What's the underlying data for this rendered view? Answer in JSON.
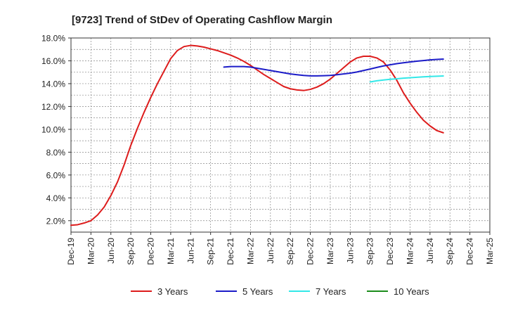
{
  "chart_data": {
    "type": "line",
    "title": "[9723]  Trend of StDev of Operating Cashflow Margin",
    "xlabel": "",
    "ylabel": "",
    "x_ticks": [
      "Dec-19",
      "Mar-20",
      "Jun-20",
      "Sep-20",
      "Dec-20",
      "Mar-21",
      "Jun-21",
      "Sep-21",
      "Dec-21",
      "Mar-22",
      "Jun-22",
      "Sep-22",
      "Dec-22",
      "Mar-23",
      "Jun-23",
      "Sep-23",
      "Dec-23",
      "Mar-24",
      "Jun-24",
      "Sep-24",
      "Dec-24",
      "Mar-25"
    ],
    "y_ticks": [
      "2.0%",
      "4.0%",
      "6.0%",
      "8.0%",
      "10.0%",
      "12.0%",
      "14.0%",
      "16.0%",
      "18.0%"
    ],
    "ylim": [
      1.0,
      18.0
    ],
    "y_unit": "%",
    "grid": true,
    "legend_position": "bottom",
    "series": [
      {
        "name": "3 Years",
        "color": "#dd1c1c",
        "points": [
          [
            "Dec-19",
            1.6
          ],
          [
            "Jan-20",
            1.65
          ],
          [
            "Feb-20",
            1.8
          ],
          [
            "Mar-20",
            2.0
          ],
          [
            "Apr-20",
            2.5
          ],
          [
            "May-20",
            3.2
          ],
          [
            "Jun-20",
            4.2
          ],
          [
            "Jul-20",
            5.4
          ],
          [
            "Aug-20",
            6.9
          ],
          [
            "Sep-20",
            8.6
          ],
          [
            "Oct-20",
            10.1
          ],
          [
            "Nov-20",
            11.5
          ],
          [
            "Dec-20",
            12.8
          ],
          [
            "Jan-21",
            14.0
          ],
          [
            "Feb-21",
            15.1
          ],
          [
            "Mar-21",
            16.2
          ],
          [
            "Apr-21",
            16.9
          ],
          [
            "May-21",
            17.25
          ],
          [
            "Jun-21",
            17.35
          ],
          [
            "Jul-21",
            17.3
          ],
          [
            "Aug-21",
            17.2
          ],
          [
            "Sep-21",
            17.05
          ],
          [
            "Oct-21",
            16.9
          ],
          [
            "Nov-21",
            16.7
          ],
          [
            "Dec-21",
            16.5
          ],
          [
            "Jan-22",
            16.25
          ],
          [
            "Feb-22",
            15.95
          ],
          [
            "Mar-22",
            15.6
          ],
          [
            "Apr-22",
            15.2
          ],
          [
            "May-22",
            14.8
          ],
          [
            "Jun-22",
            14.45
          ],
          [
            "Jul-22",
            14.1
          ],
          [
            "Aug-22",
            13.75
          ],
          [
            "Sep-22",
            13.55
          ],
          [
            "Oct-22",
            13.45
          ],
          [
            "Nov-22",
            13.4
          ],
          [
            "Dec-22",
            13.5
          ],
          [
            "Jan-23",
            13.7
          ],
          [
            "Feb-23",
            14.0
          ],
          [
            "Mar-23",
            14.4
          ],
          [
            "Apr-23",
            14.9
          ],
          [
            "May-23",
            15.4
          ],
          [
            "Jun-23",
            15.9
          ],
          [
            "Jul-23",
            16.25
          ],
          [
            "Aug-23",
            16.4
          ],
          [
            "Sep-23",
            16.4
          ],
          [
            "Oct-23",
            16.25
          ],
          [
            "Nov-23",
            15.9
          ],
          [
            "Dec-23",
            15.2
          ],
          [
            "Jan-24",
            14.3
          ],
          [
            "Feb-24",
            13.2
          ],
          [
            "Mar-24",
            12.3
          ],
          [
            "Apr-24",
            11.5
          ],
          [
            "May-24",
            10.8
          ],
          [
            "Jun-24",
            10.3
          ],
          [
            "Jul-24",
            9.9
          ],
          [
            "Aug-24",
            9.7
          ]
        ]
      },
      {
        "name": "5 Years",
        "color": "#1c1cc8",
        "points": [
          [
            "Nov-21",
            15.45
          ],
          [
            "Dec-21",
            15.5
          ],
          [
            "Jan-22",
            15.5
          ],
          [
            "Feb-22",
            15.5
          ],
          [
            "Mar-22",
            15.45
          ],
          [
            "Apr-22",
            15.35
          ],
          [
            "May-22",
            15.25
          ],
          [
            "Jun-22",
            15.15
          ],
          [
            "Jul-22",
            15.05
          ],
          [
            "Aug-22",
            14.95
          ],
          [
            "Sep-22",
            14.85
          ],
          [
            "Oct-22",
            14.78
          ],
          [
            "Nov-22",
            14.72
          ],
          [
            "Dec-22",
            14.68
          ],
          [
            "Jan-23",
            14.68
          ],
          [
            "Feb-23",
            14.7
          ],
          [
            "Mar-23",
            14.72
          ],
          [
            "Apr-23",
            14.78
          ],
          [
            "May-23",
            14.85
          ],
          [
            "Jun-23",
            14.92
          ],
          [
            "Jul-23",
            15.02
          ],
          [
            "Aug-23",
            15.15
          ],
          [
            "Sep-23",
            15.28
          ],
          [
            "Oct-23",
            15.42
          ],
          [
            "Nov-23",
            15.55
          ],
          [
            "Dec-23",
            15.65
          ],
          [
            "Jan-24",
            15.75
          ],
          [
            "Feb-24",
            15.83
          ],
          [
            "Mar-24",
            15.9
          ],
          [
            "Apr-24",
            15.97
          ],
          [
            "May-24",
            16.02
          ],
          [
            "Jun-24",
            16.08
          ],
          [
            "Jul-24",
            16.12
          ],
          [
            "Aug-24",
            16.15
          ]
        ]
      },
      {
        "name": "7 Years",
        "color": "#33e8e8",
        "points": [
          [
            "Sep-23",
            14.15
          ],
          [
            "Oct-23",
            14.25
          ],
          [
            "Nov-23",
            14.32
          ],
          [
            "Dec-23",
            14.38
          ],
          [
            "Jan-24",
            14.43
          ],
          [
            "Feb-24",
            14.48
          ],
          [
            "Mar-24",
            14.52
          ],
          [
            "Apr-24",
            14.56
          ],
          [
            "May-24",
            14.6
          ],
          [
            "Jun-24",
            14.63
          ],
          [
            "Jul-24",
            14.65
          ],
          [
            "Aug-24",
            14.67
          ]
        ]
      },
      {
        "name": "10 Years",
        "color": "#1c8c1c",
        "points": []
      }
    ]
  }
}
